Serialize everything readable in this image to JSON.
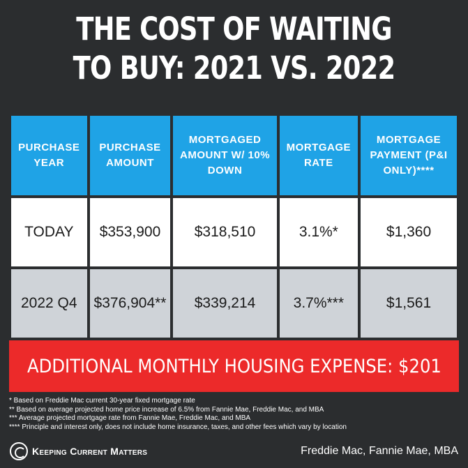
{
  "title": {
    "line1": "THE COST OF WAITING",
    "line2": "TO BUY: 2021 VS. 2022"
  },
  "table": {
    "headers": [
      "PURCHASE YEAR",
      "PURCHASE AMOUNT",
      "MORTGAGED AMOUNT W/ 10% DOWN",
      "MORTGAGE RATE",
      "MORTGAGE PAYMENT (P&I ONLY)****"
    ],
    "rows": [
      [
        "TODAY",
        "$353,900",
        "$318,510",
        "3.1%*",
        "$1,360"
      ],
      [
        "2022 Q4",
        "$376,904**",
        "$339,214",
        "3.7%***",
        "$1,561"
      ]
    ]
  },
  "banner": {
    "text": "ADDITIONAL MONTHLY HOUSING EXPENSE: $201"
  },
  "footnotes": [
    "* Based on Freddie Mac current 30-year fixed mortgage rate",
    "** Based on average projected home price increase of 6.5% from Fannie Mae, Freddie Mac, and MBA",
    "*** Average projected mortgage rate from Fannie Mae, Freddie Mac, and MBA",
    "**** Principle and interest only, does not include home insurance, taxes, and other fees which vary by location"
  ],
  "footer": {
    "brand": "Keeping Current Matters",
    "source": "Freddie Mac, Fannie Mae, MBA"
  },
  "colors": {
    "background": "#2b2d2f",
    "header_blue": "#1fa3e6",
    "row_gray": "#cfd3d8",
    "banner_red": "#ec2a2a"
  }
}
